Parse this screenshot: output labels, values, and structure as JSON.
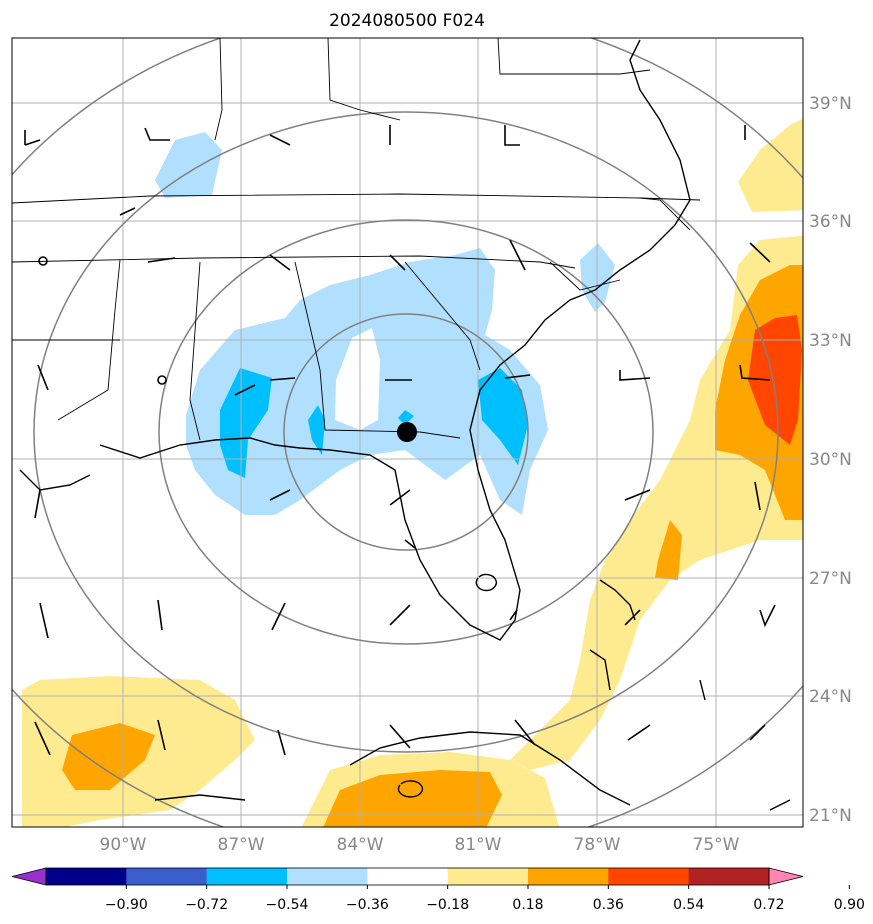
{
  "chart_data": {
    "type": "heatmap",
    "title": "2024080500 F024",
    "lat_ticks": [
      "39°N",
      "36°N",
      "33°N",
      "30°N",
      "27°N",
      "24°N",
      "21°N"
    ],
    "lon_ticks": [
      "90°W",
      "87°W",
      "84°W",
      "81°W",
      "78°W",
      "75°W"
    ],
    "colorbar_ticks": [
      "−0.90",
      "−0.72",
      "−0.54",
      "−0.36",
      "−0.18",
      "0.18",
      "0.36",
      "0.54",
      "0.72",
      "0.90"
    ],
    "colorbar_colors": [
      "#9932cc",
      "#00008b",
      "#3a5fcd",
      "#00bfff",
      "#b0e0fe",
      "#ffffff",
      "#ffeb8f",
      "#ffa500",
      "#ff4500",
      "#b22222",
      "#ff85b4"
    ],
    "center_marker": {
      "lat": 30.6,
      "lon": -82.3
    },
    "range_rings": "concentric distance rings around center",
    "colors": {
      "grid": "#b0b0b0",
      "ring": "#808080",
      "coast": "#000000"
    }
  }
}
